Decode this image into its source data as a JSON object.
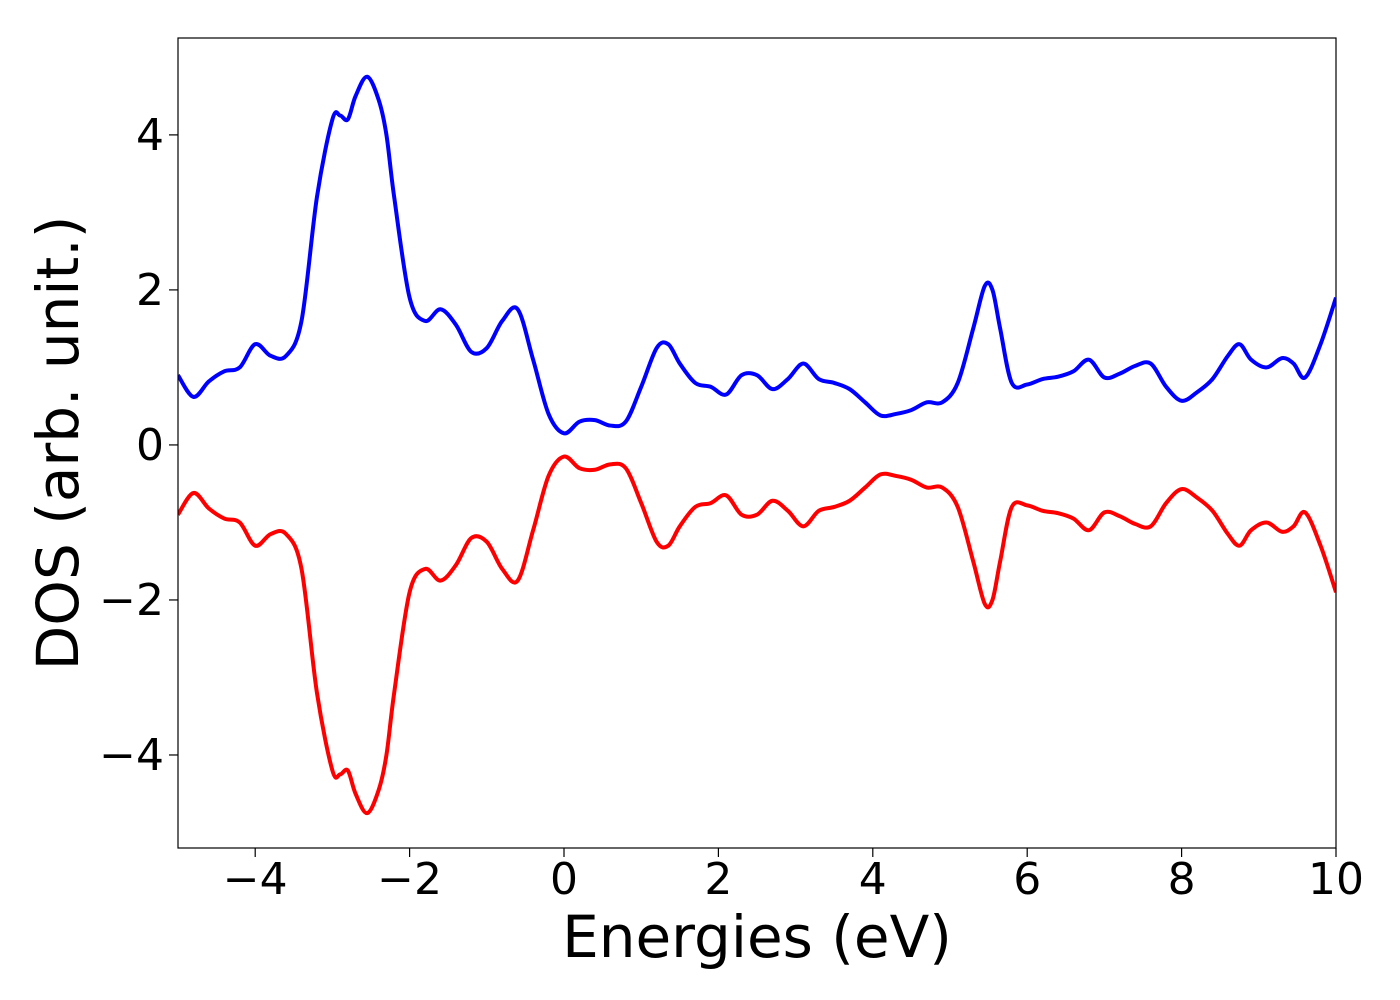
{
  "chart_data": {
    "type": "line",
    "title": "",
    "xlabel": "Energies (eV)",
    "ylabel": "DOS (arb. unit.)",
    "xlim": [
      -5,
      10
    ],
    "ylim": [
      -5.2,
      5.25
    ],
    "xticks": [
      -4,
      -2,
      0,
      2,
      4,
      6,
      8,
      10
    ],
    "yticks": [
      -4,
      -2,
      0,
      2,
      4
    ],
    "xtick_labels": [
      "−4",
      "−2",
      "0",
      "2",
      "4",
      "6",
      "8",
      "10"
    ],
    "ytick_labels": [
      "−4",
      "−2",
      "0",
      "2",
      "4"
    ],
    "grid": false,
    "legend": "none",
    "series": [
      {
        "color": "#0000ff",
        "x": [
          -5.0,
          -4.8,
          -4.6,
          -4.4,
          -4.2,
          -4.0,
          -3.8,
          -3.6,
          -3.4,
          -3.2,
          -3.0,
          -2.9,
          -2.8,
          -2.7,
          -2.55,
          -2.4,
          -2.3,
          -2.2,
          -2.0,
          -1.8,
          -1.6,
          -1.4,
          -1.2,
          -1.0,
          -0.8,
          -0.6,
          -0.4,
          -0.2,
          0.0,
          0.2,
          0.4,
          0.6,
          0.8,
          1.0,
          1.2,
          1.35,
          1.5,
          1.7,
          1.9,
          2.1,
          2.3,
          2.5,
          2.7,
          2.9,
          3.1,
          3.3,
          3.5,
          3.7,
          3.9,
          4.1,
          4.3,
          4.5,
          4.7,
          4.9,
          5.1,
          5.3,
          5.45,
          5.55,
          5.65,
          5.8,
          6.0,
          6.2,
          6.4,
          6.6,
          6.8,
          7.0,
          7.2,
          7.4,
          7.6,
          7.8,
          8.0,
          8.2,
          8.4,
          8.6,
          8.75,
          8.9,
          9.1,
          9.3,
          9.45,
          9.6,
          9.8,
          10.0
        ],
        "y": [
          0.9,
          0.62,
          0.82,
          0.95,
          1.0,
          1.3,
          1.15,
          1.15,
          1.6,
          3.2,
          4.2,
          4.25,
          4.2,
          4.5,
          4.75,
          4.45,
          4.0,
          3.2,
          1.9,
          1.6,
          1.75,
          1.55,
          1.2,
          1.25,
          1.6,
          1.75,
          1.1,
          0.4,
          0.15,
          0.3,
          0.32,
          0.25,
          0.3,
          0.75,
          1.25,
          1.3,
          1.05,
          0.8,
          0.75,
          0.65,
          0.9,
          0.9,
          0.72,
          0.85,
          1.05,
          0.85,
          0.8,
          0.72,
          0.55,
          0.38,
          0.4,
          0.45,
          0.55,
          0.55,
          0.8,
          1.5,
          2.05,
          2.0,
          1.5,
          0.8,
          0.78,
          0.85,
          0.88,
          0.95,
          1.1,
          0.87,
          0.92,
          1.02,
          1.05,
          0.75,
          0.57,
          0.68,
          0.85,
          1.15,
          1.3,
          1.1,
          1.0,
          1.12,
          1.05,
          0.87,
          1.3,
          1.9
        ]
      },
      {
        "color": "#ff0000",
        "x": [
          -5.0,
          -4.8,
          -4.6,
          -4.4,
          -4.2,
          -4.0,
          -3.8,
          -3.6,
          -3.4,
          -3.2,
          -3.0,
          -2.9,
          -2.8,
          -2.7,
          -2.55,
          -2.4,
          -2.3,
          -2.2,
          -2.0,
          -1.8,
          -1.6,
          -1.4,
          -1.2,
          -1.0,
          -0.8,
          -0.6,
          -0.4,
          -0.2,
          0.0,
          0.2,
          0.4,
          0.6,
          0.8,
          1.0,
          1.2,
          1.35,
          1.5,
          1.7,
          1.9,
          2.1,
          2.3,
          2.5,
          2.7,
          2.9,
          3.1,
          3.3,
          3.5,
          3.7,
          3.9,
          4.1,
          4.3,
          4.5,
          4.7,
          4.9,
          5.1,
          5.3,
          5.45,
          5.55,
          5.65,
          5.8,
          6.0,
          6.2,
          6.4,
          6.6,
          6.8,
          7.0,
          7.2,
          7.4,
          7.6,
          7.8,
          8.0,
          8.2,
          8.4,
          8.6,
          8.75,
          8.9,
          9.1,
          9.3,
          9.45,
          9.6,
          9.8,
          10.0
        ],
        "y": [
          -0.9,
          -0.62,
          -0.82,
          -0.95,
          -1.0,
          -1.3,
          -1.15,
          -1.15,
          -1.6,
          -3.2,
          -4.2,
          -4.25,
          -4.2,
          -4.5,
          -4.75,
          -4.45,
          -4.0,
          -3.2,
          -1.9,
          -1.6,
          -1.75,
          -1.55,
          -1.2,
          -1.25,
          -1.6,
          -1.75,
          -1.1,
          -0.4,
          -0.15,
          -0.3,
          -0.32,
          -0.25,
          -0.3,
          -0.75,
          -1.25,
          -1.3,
          -1.05,
          -0.8,
          -0.75,
          -0.65,
          -0.9,
          -0.9,
          -0.72,
          -0.85,
          -1.05,
          -0.85,
          -0.8,
          -0.72,
          -0.55,
          -0.38,
          -0.4,
          -0.45,
          -0.55,
          -0.55,
          -0.8,
          -1.5,
          -2.05,
          -2.0,
          -1.5,
          -0.8,
          -0.78,
          -0.85,
          -0.88,
          -0.95,
          -1.1,
          -0.87,
          -0.92,
          -1.02,
          -1.05,
          -0.75,
          -0.57,
          -0.68,
          -0.85,
          -1.15,
          -1.3,
          -1.1,
          -1.0,
          -1.12,
          -1.05,
          -0.87,
          -1.3,
          -1.9
        ]
      }
    ]
  }
}
